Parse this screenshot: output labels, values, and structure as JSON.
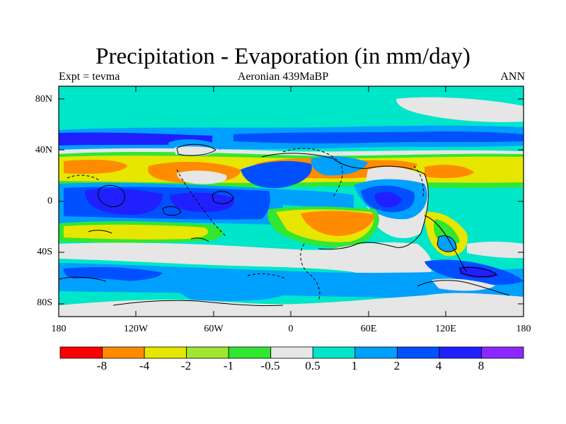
{
  "title": "Precipitation - Evaporation (in mm/day)",
  "subtitle_left": "Expt = tevma",
  "subtitle_center": "Aeronian 439MaBP",
  "subtitle_right": "ANN",
  "y_ticks": [
    "80N",
    "40N",
    "0",
    "40S",
    "80S"
  ],
  "x_ticks": [
    "180",
    "120W",
    "60W",
    "0",
    "60E",
    "120E",
    "180"
  ],
  "colorbar": {
    "labels": [
      "-8",
      "-4",
      "-2",
      "-1",
      "-0.5",
      "0.5",
      "1",
      "2",
      "4",
      "8"
    ],
    "colors": [
      "#ff0000",
      "#ff8c00",
      "#e6e600",
      "#a0e632",
      "#32e632",
      "#e6e6e6",
      "#00e6c8",
      "#00a0ff",
      "#0050ff",
      "#2020ff",
      "#8c28ff"
    ]
  },
  "map_colors": {
    "ocean_background": "#00e6c8",
    "dry_strong": "#ff8c00",
    "dry_moderate": "#e6e600",
    "dry_light": "#a0e632",
    "dry_weak": "#32e632",
    "neutral": "#e6e6e6",
    "wet_light": "#00a0ff",
    "wet_moderate": "#0050ff",
    "wet_strong": "#2020ff"
  }
}
